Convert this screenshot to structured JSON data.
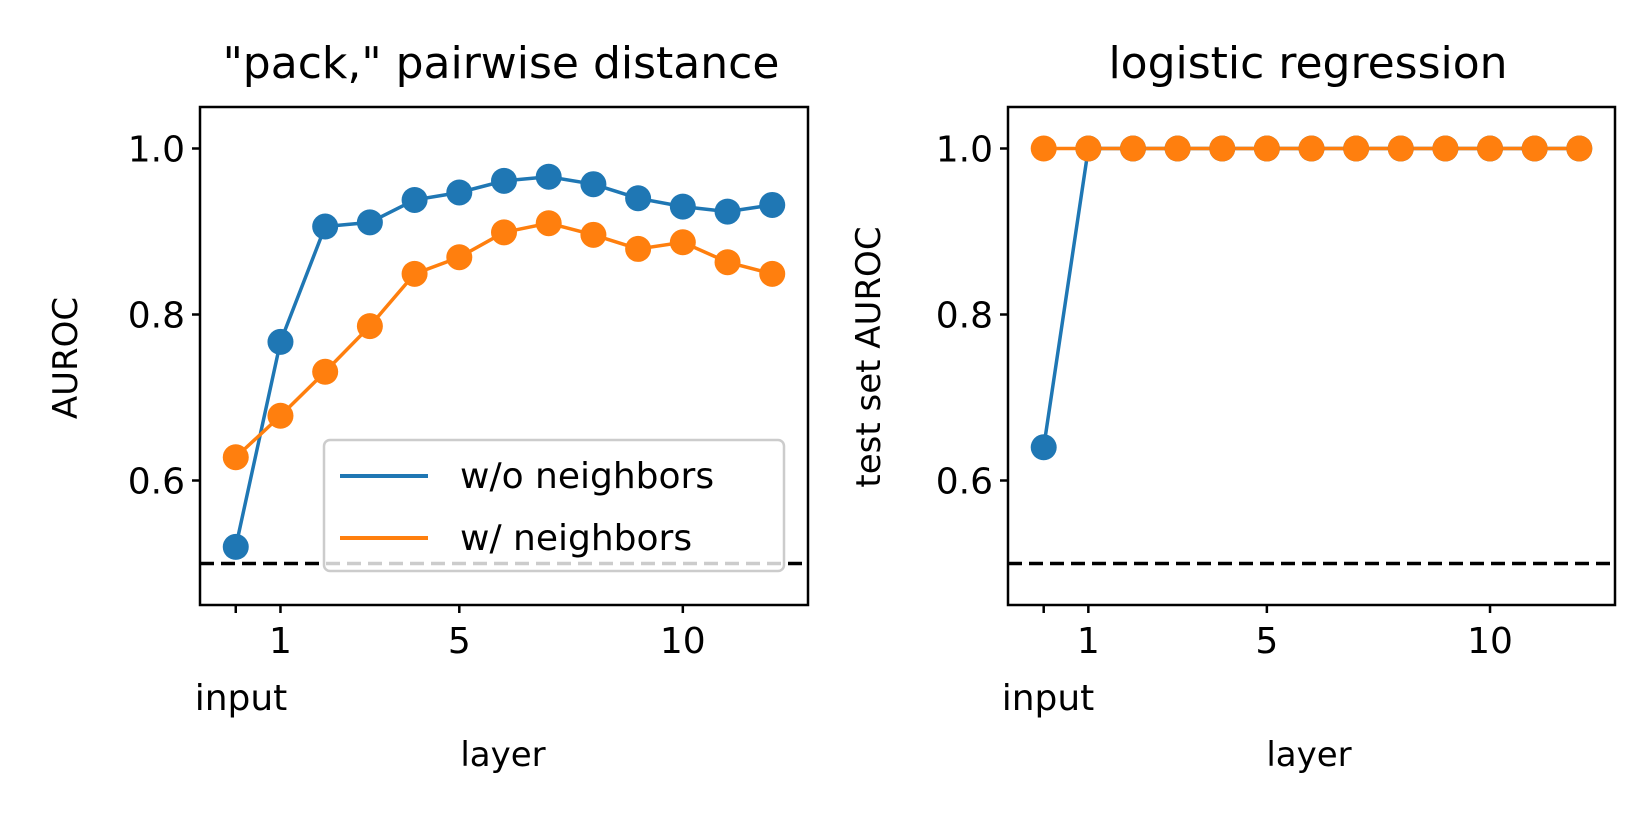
{
  "chart_data": [
    {
      "type": "line",
      "title": "\"pack,\" pairwise distance",
      "xlabel": "layer",
      "ylabel": "AUROC",
      "x": [
        0,
        1,
        2,
        3,
        4,
        5,
        6,
        7,
        8,
        9,
        10,
        11,
        12
      ],
      "xticks": [
        0,
        1,
        5,
        10
      ],
      "xtick_labels": [
        "",
        "1",
        "5",
        "10"
      ],
      "xtick_sublabel": "input",
      "yticks": [
        0.6,
        0.8,
        1.0
      ],
      "ytick_labels": [
        "0.6",
        "0.8",
        "1.0"
      ],
      "xlim": [
        -0.8,
        12.8
      ],
      "ylim": [
        0.45,
        1.05
      ],
      "grid": false,
      "legend": "lower-right",
      "reference_line": {
        "y": 0.5,
        "style": "dashed",
        "color": "#000000"
      },
      "series": [
        {
          "name": "w/o neighbors",
          "color": "#1f77b4",
          "values": [
            0.52,
            0.767,
            0.906,
            0.911,
            0.938,
            0.947,
            0.961,
            0.966,
            0.957,
            0.94,
            0.93,
            0.924,
            0.932
          ]
        },
        {
          "name": "w/ neighbors",
          "color": "#ff7f0e",
          "values": [
            0.628,
            0.678,
            0.731,
            0.786,
            0.849,
            0.869,
            0.899,
            0.91,
            0.896,
            0.879,
            0.887,
            0.863,
            0.849
          ]
        }
      ]
    },
    {
      "type": "line",
      "title": "logistic regression",
      "xlabel": "layer",
      "ylabel": "test set AUROC",
      "x": [
        0,
        1,
        2,
        3,
        4,
        5,
        6,
        7,
        8,
        9,
        10,
        11,
        12
      ],
      "xticks": [
        0,
        1,
        5,
        10
      ],
      "xtick_labels": [
        "",
        "1",
        "5",
        "10"
      ],
      "xtick_sublabel": "input",
      "yticks": [
        0.6,
        0.8,
        1.0
      ],
      "ytick_labels": [
        "0.6",
        "0.8",
        "1.0"
      ],
      "xlim": [
        -0.8,
        12.8
      ],
      "ylim": [
        0.45,
        1.05
      ],
      "grid": false,
      "legend": "none",
      "reference_line": {
        "y": 0.5,
        "style": "dashed",
        "color": "#000000"
      },
      "series": [
        {
          "color": "#1f77b4",
          "values": [
            0.64,
            1.0,
            1.0,
            1.0,
            1.0,
            1.0,
            1.0,
            1.0,
            1.0,
            1.0,
            1.0,
            1.0,
            1.0
          ]
        },
        {
          "color": "#ff7f0e",
          "values": [
            1.0,
            1.0,
            1.0,
            1.0,
            1.0,
            1.0,
            1.0,
            1.0,
            1.0,
            1.0,
            1.0,
            1.0,
            1.0
          ]
        }
      ]
    }
  ]
}
